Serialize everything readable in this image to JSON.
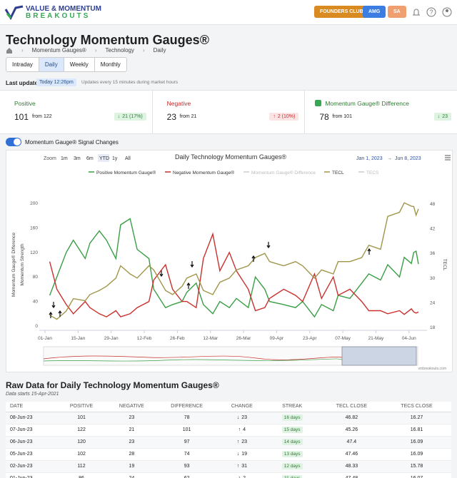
{
  "header": {
    "logo_line1": "VALUE & MOMENTUM",
    "logo_line2": "BREAKOUTS",
    "buttons": [
      "FOUNDERS CLUB",
      "AMG",
      "SA"
    ]
  },
  "page": {
    "title": "Technology Momentum Gauges®",
    "breadcrumb": [
      "Momentum Gauges®",
      "Technology",
      "Daily"
    ],
    "tabs": [
      "Intraday",
      "Daily",
      "Weekly",
      "Monthly"
    ],
    "active_tab": 1,
    "last_update_label": "Last update",
    "last_update": "Today 12:26pm",
    "update_note": "Updates every 15 minutes during market hours"
  },
  "cards": [
    {
      "label": "Positive",
      "value": "101",
      "from": "from 122",
      "delta": "21 (17%)",
      "direction": "down",
      "color": "#2e7d32"
    },
    {
      "label": "Negative",
      "value": "23",
      "from": "from 21",
      "delta": "2 (10%)",
      "direction": "up",
      "color": "#c62828"
    },
    {
      "label": "Momentum Gauge® Difference",
      "value": "78",
      "from": "from 101",
      "delta": "23",
      "direction": "down",
      "color": "#2e7d32"
    }
  ],
  "toggle_label": "Momentum Gauge® Signal Changes",
  "chart_data": {
    "type": "line",
    "title": "Daily Technology Momentum Gauges®",
    "zoom_label": "Zoom",
    "zoom_buttons": [
      "1m",
      "3m",
      "6m",
      "YTD",
      "1y",
      "All"
    ],
    "active_zoom": 3,
    "range": [
      "Jan 1, 2023",
      "Jun 8, 2023"
    ],
    "x": [
      "2023-01-03",
      "2023-01-06",
      "2023-01-10",
      "2023-01-13",
      "2023-01-18",
      "2023-01-20",
      "2023-01-24",
      "2023-01-27",
      "2023-01-31",
      "2023-02-02",
      "2023-02-06",
      "2023-02-09",
      "2023-02-14",
      "2023-02-16",
      "2023-02-21",
      "2023-02-24",
      "2023-02-28",
      "2023-03-02",
      "2023-03-06",
      "2023-03-09",
      "2023-03-13",
      "2023-03-16",
      "2023-03-20",
      "2023-03-23",
      "2023-03-28",
      "2023-03-31",
      "2023-04-04",
      "2023-04-06",
      "2023-04-12",
      "2023-04-17",
      "2023-04-20",
      "2023-04-25",
      "2023-04-28",
      "2023-05-03",
      "2023-05-05",
      "2023-05-10",
      "2023-05-15",
      "2023-05-18",
      "2023-05-23",
      "2023-05-26",
      "2023-05-31",
      "2023-06-02",
      "2023-06-05",
      "2023-06-06",
      "2023-06-07",
      "2023-06-08"
    ],
    "xlim": [
      "2023-01-01",
      "2023-06-08"
    ],
    "xticks": [
      {
        "value": "2023-01-01",
        "label": "01-Jan"
      },
      {
        "value": "2023-01-15",
        "label": "15-Jan"
      },
      {
        "value": "2023-01-29",
        "label": "29-Jan"
      },
      {
        "value": "2023-02-12",
        "label": "12-Feb"
      },
      {
        "value": "2023-02-26",
        "label": "26-Feb"
      },
      {
        "value": "2023-03-12",
        "label": "12-Mar"
      },
      {
        "value": "2023-03-26",
        "label": "26-Mar"
      },
      {
        "value": "2023-04-09",
        "label": "09-Apr"
      },
      {
        "value": "2023-04-23",
        "label": "23-Apr"
      },
      {
        "value": "2023-05-07",
        "label": "07-May"
      },
      {
        "value": "2023-05-21",
        "label": "21-May"
      },
      {
        "value": "2023-06-04",
        "label": "04-Jun"
      }
    ],
    "ylabel": "Momentum Strength",
    "ylabel2": "Momentum Gauge® Difference",
    "y2label": "TECL",
    "ylim": [
      0,
      200
    ],
    "yticks": [
      0,
      40,
      80,
      120,
      160,
      200
    ],
    "y2lim": [
      18,
      48
    ],
    "y2ticks": [
      18,
      24,
      30,
      36,
      42,
      48
    ],
    "series": [
      {
        "name": "Positive Momentum Gauge®",
        "color": "#3a9e45",
        "visible": true,
        "values": [
          50,
          80,
          120,
          140,
          110,
          135,
          155,
          140,
          110,
          165,
          175,
          125,
          110,
          60,
          30,
          35,
          40,
          55,
          70,
          35,
          20,
          40,
          30,
          45,
          30,
          80,
          60,
          40,
          35,
          30,
          40,
          15,
          35,
          25,
          50,
          45,
          70,
          85,
          75,
          100,
          80,
          112,
          102,
          120,
          122,
          101
        ]
      },
      {
        "name": "Negative Momentum Gauge®",
        "color": "#c9302c",
        "visible": true,
        "values": [
          105,
          60,
          35,
          20,
          40,
          30,
          20,
          15,
          25,
          15,
          20,
          30,
          40,
          75,
          100,
          60,
          40,
          40,
          30,
          110,
          150,
          90,
          120,
          90,
          60,
          25,
          30,
          45,
          60,
          50,
          40,
          85,
          45,
          80,
          50,
          60,
          40,
          25,
          25,
          20,
          25,
          19,
          28,
          23,
          21,
          23
        ]
      },
      {
        "name": "Momentum Gauge® Difference",
        "color": "#bbbbbb",
        "visible": false
      },
      {
        "name": "TECL",
        "color": "#a0964a",
        "visible": true,
        "axis": "y2",
        "values": [
          21,
          20,
          22,
          25,
          24.5,
          26,
          27,
          28,
          30,
          33,
          31,
          30,
          33,
          32,
          27,
          26,
          28,
          30,
          31,
          27,
          26,
          29,
          30,
          32,
          33,
          35,
          36,
          34,
          33,
          34,
          33,
          30,
          32,
          31,
          34,
          34,
          35,
          38,
          37,
          45,
          46,
          48.3,
          47.5,
          47.4,
          45.3,
          46.8
        ]
      },
      {
        "name": "TECS",
        "color": "#bbbbbb",
        "visible": false
      }
    ],
    "credit": "vmbreakouts.com"
  },
  "table": {
    "title": "Raw Data for Daily Technology Momentum Gauges®",
    "subtitle": "Data starts 15-Apr-2021",
    "columns": [
      "DATE",
      "POSITIVE",
      "NEGATIVE",
      "DIFFERENCE",
      "CHANGE",
      "STREAK",
      "TECL CLOSE",
      "TECS CLOSE"
    ],
    "rows": [
      [
        "08-Jun-23",
        "101",
        "23",
        "78",
        "23",
        "16 days",
        "46.82",
        "16.27"
      ],
      [
        "07-Jun-23",
        "122",
        "21",
        "101",
        "4",
        "15 days",
        "45.26",
        "16.81"
      ],
      [
        "06-Jun-23",
        "120",
        "23",
        "97",
        "23",
        "14 days",
        "47.4",
        "16.09"
      ],
      [
        "05-Jun-23",
        "102",
        "28",
        "74",
        "19",
        "13 days",
        "47.46",
        "16.09"
      ],
      [
        "02-Jun-23",
        "112",
        "19",
        "93",
        "31",
        "12 days",
        "48.33",
        "15.78"
      ],
      [
        "01-Jun-23",
        "86",
        "24",
        "62",
        "2",
        "11 days",
        "47.48",
        "16.07"
      ]
    ],
    "change_directions": [
      "down",
      "up",
      "up",
      "down",
      "up",
      "up"
    ]
  }
}
